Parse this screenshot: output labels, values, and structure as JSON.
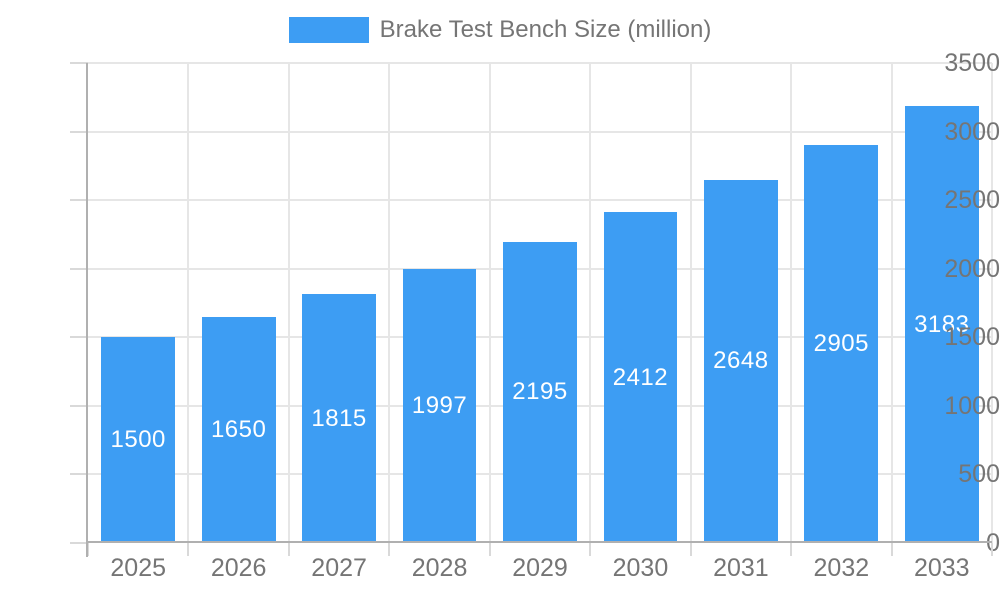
{
  "legend": {
    "label": "Brake Test Bench Size (million)"
  },
  "chart_data": {
    "type": "bar",
    "title": "Brake Test Bench Size (million)",
    "categories": [
      "2025",
      "2026",
      "2027",
      "2028",
      "2029",
      "2030",
      "2031",
      "2032",
      "2033"
    ],
    "values": [
      1500,
      1650,
      1815,
      1997,
      2195,
      2412,
      2648,
      2905,
      3183
    ],
    "series": [
      {
        "name": "Brake Test Bench Size (million)",
        "values": [
          1500,
          1650,
          1815,
          1997,
          2195,
          2412,
          2648,
          2905,
          3183
        ]
      }
    ],
    "xlabel": "",
    "ylabel": "",
    "ylim": [
      0,
      3500
    ],
    "yticks": [
      0,
      500,
      1000,
      1500,
      2000,
      2500,
      3000,
      3500
    ],
    "grid": true,
    "legend_position": "top",
    "bar_color": "#3D9DF3",
    "value_label_color": "#ffffff",
    "axis_text_color": "#757575",
    "gridline_color": "#e6e6e6"
  }
}
